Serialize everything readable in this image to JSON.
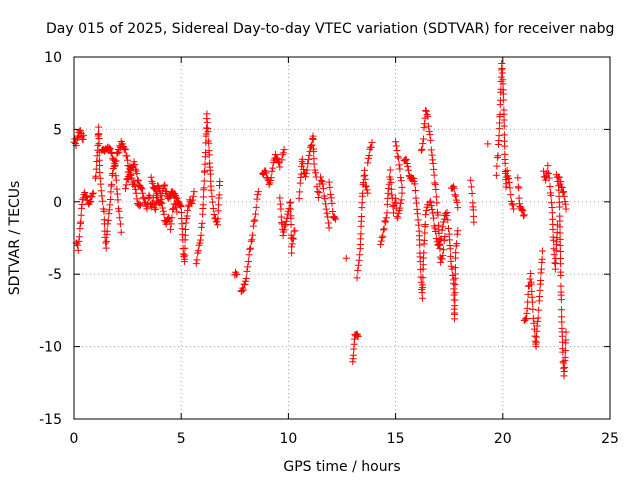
{
  "chart_data": {
    "type": "scatter",
    "title": "Day 015 of 2025, Sidereal Day-to-day VTEC variation (SDTVAR) for receiver nabg",
    "xlabel": "GPS time / hours",
    "ylabel": "SDTVAR / TECUs",
    "xlim": [
      0,
      25
    ],
    "ylim": [
      -15,
      10
    ],
    "xticks": [
      0,
      5,
      10,
      15,
      20,
      25
    ],
    "yticks": [
      -15,
      -10,
      -5,
      0,
      5,
      10
    ],
    "xtick_labels": [
      "0",
      "5",
      "10",
      "15",
      "20",
      "25"
    ],
    "ytick_labels": [
      "-15",
      "-10",
      "-5",
      "0",
      "5",
      "10"
    ],
    "grid": true,
    "marker": "+",
    "color": "#ff0000",
    "series": [
      {
        "name": "SDTVAR",
        "segments": [
          [
            0.0,
            4.3,
            0.1,
            4.0,
            0.2,
            4.6,
            0.3,
            4.9,
            0.4,
            4.2,
            0.45,
            4.6
          ],
          [
            0.1,
            -2.8,
            0.2,
            -3.2,
            0.3,
            -1.6,
            0.35,
            -0.6,
            0.4,
            0.1,
            0.5,
            0.5,
            0.6,
            0.3,
            0.7,
            -0.1,
            0.8,
            0.2,
            0.9,
            0.6
          ],
          [
            1.0,
            1.5,
            1.1,
            3.6,
            1.15,
            5.2,
            1.2,
            2.1,
            1.3,
            0.4,
            1.4,
            -0.8,
            1.45,
            -2.5,
            1.5,
            -3.2,
            1.55,
            -2.0,
            1.6,
            -1.2,
            1.7,
            0.2,
            1.8,
            2.1,
            1.9,
            2.8,
            2.0,
            1.0,
            2.1,
            -0.8,
            2.2,
            -2.1
          ],
          [
            1.3,
            3.4,
            1.5,
            3.8,
            1.7,
            3.6,
            1.9,
            2.6,
            2.0,
            3.2,
            2.2,
            4.0,
            2.3,
            3.9,
            2.4,
            3.6,
            2.5,
            2.8,
            2.55,
            1.7,
            2.6,
            2.3,
            2.7,
            1.5,
            2.8,
            1.1,
            2.9,
            0.5,
            3.0,
            -0.3,
            3.1,
            -0.2
          ],
          [
            2.4,
            1.0,
            2.6,
            2.2,
            2.8,
            2.6,
            3.0,
            1.4,
            3.2,
            0.6,
            3.4,
            -0.5,
            3.5,
            0.5,
            3.6,
            -0.3,
            3.7,
            0.2,
            3.8,
            -0.6,
            3.9,
            1.0,
            4.0,
            0.7,
            4.1,
            -0.2,
            4.2,
            -1.0,
            4.3,
            -1.4,
            4.4,
            -0.9,
            4.5,
            -1.8,
            4.6,
            -0.6,
            4.7,
            0.1,
            4.8,
            -0.7
          ],
          [
            3.6,
            1.6,
            3.8,
            0.7,
            4.0,
            -0.1,
            4.2,
            1.1,
            4.4,
            0.4,
            4.6,
            0.6,
            4.8,
            0.2,
            5.0,
            -0.4,
            5.1,
            -3.6,
            5.15,
            -4.3,
            5.2,
            -2.0,
            5.3,
            -0.5,
            5.4,
            0.0,
            5.5,
            -0.2,
            5.6,
            0.7
          ],
          [
            5.7,
            -4.4,
            5.8,
            -3.3,
            5.9,
            -2.6,
            6.0,
            -1.0,
            6.05,
            0.7,
            6.1,
            2.3,
            6.15,
            4.0,
            6.2,
            6.0,
            6.25,
            4.8,
            6.3,
            3.5,
            6.35,
            2.1,
            6.4,
            0.7,
            6.5,
            -0.5,
            6.6,
            -1.2,
            6.7,
            -1.5,
            6.8,
            1.4
          ],
          [
            7.5,
            -4.9,
            7.6,
            -5.0
          ],
          [
            7.8,
            -6.3,
            8.0,
            -5.6,
            8.1,
            -4.6,
            8.2,
            -3.4,
            8.3,
            -2.5,
            8.4,
            -1.5,
            8.5,
            -0.3,
            8.6,
            0.7
          ],
          [
            8.8,
            1.8,
            8.9,
            2.3,
            9.0,
            1.8,
            9.1,
            1.3,
            9.2,
            1.8,
            9.3,
            2.6,
            9.4,
            3.2,
            9.5,
            2.8,
            9.6,
            2.4
          ],
          [
            9.6,
            0.2,
            9.65,
            -0.6,
            9.7,
            -1.6,
            9.75,
            -2.3,
            9.8,
            -1.9,
            9.9,
            -1.2,
            10.0,
            -0.6,
            10.1,
            0.1,
            10.15,
            -3.5,
            10.2,
            -2.6,
            10.3,
            -2.0
          ],
          [
            9.7,
            3.0,
            9.8,
            3.6
          ],
          [
            10.5,
            0.4,
            10.6,
            2.0,
            10.65,
            3.0,
            10.7,
            2.3,
            10.8,
            1.6,
            10.9,
            2.5,
            11.0,
            3.4,
            11.1,
            4.0,
            11.15,
            4.6,
            11.2,
            2.5,
            11.3,
            1.6,
            11.4,
            0.4,
            11.5,
            1.6,
            11.6,
            1.1,
            11.7,
            0.2,
            11.8,
            -0.8,
            11.9,
            -1.8
          ],
          [
            11.9,
            1.4,
            12.0,
            0.2,
            12.1,
            -1.0,
            12.2,
            -1.2
          ],
          [
            12.7,
            -3.9
          ],
          [
            13.0,
            -11.2,
            13.05,
            -10.2,
            13.1,
            -9.2,
            13.2,
            -9.0,
            13.25,
            -9.3
          ],
          [
            13.2,
            -5.3,
            13.3,
            -4.0,
            13.35,
            -3.2,
            13.4,
            -1.3,
            13.45,
            0.4,
            13.5,
            1.4,
            13.55,
            2.3,
            13.6,
            1.2,
            13.7,
            0.6
          ],
          [
            13.7,
            2.6,
            13.8,
            3.5,
            13.9,
            4.1
          ],
          [
            14.3,
            -3.0,
            14.4,
            -2.4,
            14.5,
            -1.5,
            14.6,
            -0.7,
            14.65,
            0.5,
            14.7,
            1.3,
            14.75,
            2.1,
            14.8,
            0.8,
            14.9,
            -0.6,
            15.0,
            0.2,
            15.1,
            -1.2,
            15.2,
            -0.5,
            15.3,
            0.6
          ],
          [
            15.0,
            4.1,
            15.1,
            3.3,
            15.2,
            2.1,
            15.3,
            1.0
          ],
          [
            15.4,
            2.7,
            15.5,
            3.0,
            15.6,
            2.2,
            15.7,
            1.5,
            15.8,
            1.7,
            15.9,
            1.3,
            16.0,
            -0.5,
            16.1,
            -2.0,
            16.15,
            -4.3,
            16.2,
            -5.6,
            16.25,
            -6.5,
            16.3,
            -3.8,
            16.4,
            -1.0,
            16.5,
            -0.2
          ],
          [
            16.2,
            3.4,
            16.3,
            4.5,
            16.4,
            6.3,
            16.5,
            5.8,
            16.6,
            4.6,
            16.7,
            3.3,
            16.8,
            1.8,
            16.9,
            0.3,
            17.0,
            -1.5,
            17.05,
            -3.0,
            17.1,
            -4.2,
            17.2,
            -3.6,
            17.3,
            -2.4
          ],
          [
            16.6,
            0.0,
            16.7,
            -0.4,
            16.8,
            -1.5,
            16.9,
            -2.5,
            17.0,
            -3.0,
            17.1,
            -2.7,
            17.2,
            -1.8,
            17.3,
            -1.0,
            17.4,
            -0.8,
            17.5,
            -2.1,
            17.6,
            -4.4,
            17.7,
            -5.3,
            17.75,
            -8.1,
            17.8,
            -3.6,
            17.9,
            -2.0
          ],
          [
            17.6,
            0.8,
            17.7,
            1.0,
            17.8,
            0.4,
            17.9,
            -0.4
          ],
          [
            18.5,
            1.4,
            18.6,
            0.1,
            18.65,
            -1.4
          ],
          [
            19.3,
            4.0
          ],
          [
            19.7,
            2.0,
            19.8,
            3.8,
            19.85,
            5.3,
            19.9,
            7.5,
            19.95,
            9.6,
            20.0,
            8.6,
            20.05,
            6.5,
            20.1,
            3.0,
            20.15,
            1.0,
            20.2,
            2.1,
            20.3,
            1.4,
            20.4,
            0.2,
            20.5,
            -0.5
          ],
          [
            20.7,
            1.6,
            20.8,
            -0.4,
            21.0,
            -0.9
          ],
          [
            21.0,
            -8.1,
            21.1,
            -8.0,
            21.2,
            -6.0,
            21.3,
            -5.0,
            21.4,
            -7.5,
            21.5,
            -9.2,
            21.55,
            -10.1,
            21.6,
            -8.7,
            21.7,
            -7.0,
            21.8,
            -4.6,
            21.85,
            -3.4
          ],
          [
            21.9,
            2.1,
            22.0,
            1.5,
            22.1,
            2.5,
            22.2,
            1.2,
            22.3,
            -0.5,
            22.35,
            -2.4,
            22.4,
            -3.6,
            22.45,
            -4.5,
            22.5,
            -3.0,
            22.55,
            -1.6
          ],
          [
            22.5,
            1.8,
            22.6,
            1.0,
            22.65,
            -0.4,
            22.7,
            -4.8,
            22.75,
            -8.2,
            22.8,
            -10.5,
            22.85,
            -12.0,
            22.9,
            -11.0,
            22.95,
            -9.0
          ],
          [
            22.6,
            1.7,
            22.8,
            0.8,
            22.9,
            0.1,
            22.95,
            -0.5
          ]
        ]
      }
    ]
  }
}
